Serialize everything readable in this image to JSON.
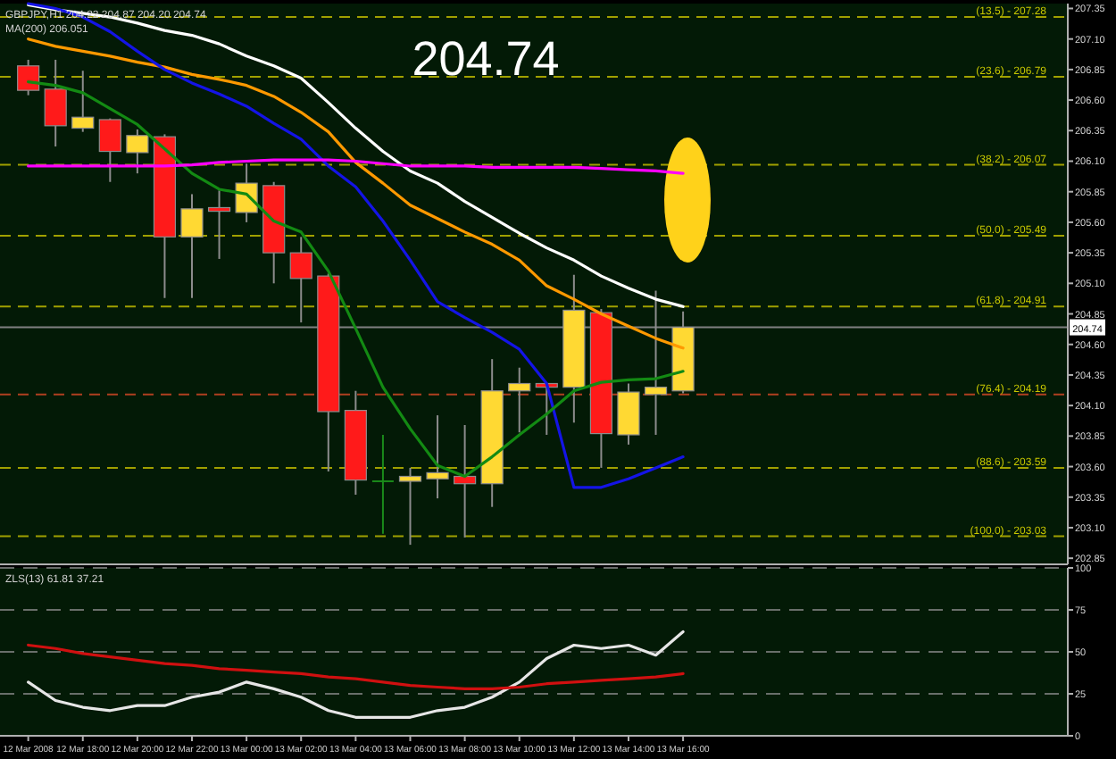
{
  "chart_data": [
    {
      "type": "candlestick",
      "annotations": [
        "GBPJPY,H1 204.22 204.87 204.20 204.74",
        "MA(200) 206.051",
        "204.74",
        {
          "text": "(13.5) - 207.28",
          "y": 207.28
        },
        {
          "text": "(23.6) - 206.79",
          "y": 206.79
        },
        {
          "text": "(38.2) - 206.07",
          "y": 206.07
        },
        {
          "text": "(50.0) - 205.49",
          "y": 205.49
        },
        {
          "text": "(61.8) - 204.91",
          "y": 204.91
        },
        {
          "text": "(76.4) - 204.19",
          "y": 204.19
        },
        {
          "text": "(88.6) - 203.59",
          "y": 203.59
        },
        {
          "text": "(100.0) - 203.03",
          "y": 203.03
        }
      ],
      "categories": [
        null,
        null,
        null,
        null,
        null,
        null,
        null,
        null,
        null,
        null,
        null,
        null,
        null,
        null,
        null,
        null,
        null,
        null,
        null,
        null,
        null,
        null,
        null,
        null,
        null
      ],
      "ohlc": [
        [
          206.88,
          206.93,
          206.64,
          206.68
        ],
        [
          206.69,
          206.93,
          206.22,
          206.39
        ],
        [
          206.37,
          206.84,
          206.34,
          206.46
        ],
        [
          206.44,
          206.45,
          205.93,
          206.18
        ],
        [
          206.17,
          206.36,
          206.0,
          206.31
        ],
        [
          206.3,
          206.32,
          204.98,
          205.48
        ],
        [
          205.48,
          205.83,
          204.98,
          205.71
        ],
        [
          205.72,
          205.86,
          205.3,
          205.69
        ],
        [
          205.68,
          206.08,
          205.6,
          205.92
        ],
        [
          205.9,
          205.93,
          205.1,
          205.35
        ],
        [
          205.35,
          205.48,
          204.78,
          205.14
        ],
        [
          205.16,
          205.18,
          203.56,
          204.05
        ],
        [
          204.06,
          204.22,
          203.37,
          203.49
        ],
        [
          203.48,
          203.86,
          203.05,
          203.48
        ],
        [
          203.48,
          203.59,
          202.96,
          203.52
        ],
        [
          203.5,
          204.02,
          203.34,
          203.55
        ],
        [
          203.52,
          203.94,
          203.02,
          203.46
        ],
        [
          203.46,
          204.48,
          203.27,
          204.22
        ],
        [
          204.22,
          204.41,
          203.88,
          204.28
        ],
        [
          204.28,
          204.28,
          203.86,
          204.25
        ],
        [
          204.25,
          205.17,
          203.96,
          204.88
        ],
        [
          204.86,
          204.89,
          203.59,
          203.87
        ],
        [
          203.86,
          204.28,
          203.78,
          204.21
        ],
        [
          204.19,
          205.04,
          203.86,
          204.25
        ],
        [
          204.22,
          204.87,
          204.2,
          204.74
        ]
      ],
      "colors": [
        "#ff1a1a",
        "#ff1a1a",
        "#ffd933",
        "#ff1a1a",
        "#ffd933",
        "#ff1a1a",
        "#ffd933",
        "#ff1a1a",
        "#ffd933",
        "#ff1a1a",
        "#ff1a1a",
        "#ff1a1a",
        "#ff1a1a",
        "#1a8a1a",
        "#ffd933",
        "#ffd933",
        "#ff1a1a",
        "#ffd933",
        "#ffd933",
        "#ff1a1a",
        "#ffd933",
        "#ff1a1a",
        "#ffd933",
        "#ffd933",
        "#ffd933"
      ],
      "series": [
        {
          "type": "line",
          "color": "#ffffff",
          "values": [
            207.38,
            207.34,
            207.31,
            207.28,
            207.23,
            207.17,
            207.13,
            207.06,
            206.96,
            206.88,
            206.78,
            206.58,
            206.37,
            206.18,
            206.02,
            205.92,
            205.77,
            205.64,
            205.51,
            205.39,
            205.29,
            205.16,
            205.06,
            204.97,
            204.91
          ]
        },
        {
          "type": "line",
          "color": "#ff9900",
          "values": [
            207.1,
            207.04,
            207.0,
            206.96,
            206.91,
            206.87,
            206.81,
            206.77,
            206.72,
            206.63,
            206.5,
            206.34,
            206.09,
            205.92,
            205.74,
            205.63,
            205.52,
            205.42,
            205.29,
            205.08,
            204.97,
            204.85,
            204.75,
            204.65,
            204.57
          ]
        },
        {
          "type": "line",
          "color": "#1414e6",
          "values": [
            207.39,
            207.35,
            207.28,
            207.16,
            207.0,
            206.85,
            206.74,
            206.65,
            206.55,
            206.41,
            206.28,
            206.06,
            205.89,
            205.61,
            205.29,
            204.95,
            204.82,
            204.7,
            204.56,
            204.28,
            203.43,
            203.43,
            203.5,
            203.59,
            203.68
          ]
        },
        {
          "type": "line",
          "color": "#138a13",
          "values": [
            206.75,
            206.72,
            206.66,
            206.53,
            206.4,
            206.2,
            206.0,
            205.87,
            205.83,
            205.61,
            205.52,
            205.2,
            204.73,
            204.25,
            203.91,
            203.61,
            203.52,
            203.68,
            203.86,
            204.03,
            204.22,
            204.29,
            204.31,
            204.32,
            204.38
          ]
        },
        {
          "type": "line",
          "color": "#ff00ff",
          "values": [
            206.06,
            206.06,
            206.06,
            206.06,
            206.06,
            206.06,
            206.07,
            206.09,
            206.1,
            206.11,
            206.11,
            206.11,
            206.1,
            206.08,
            206.06,
            206.06,
            206.06,
            206.05,
            206.05,
            206.05,
            206.05,
            206.04,
            206.03,
            206.02,
            206.0
          ]
        }
      ],
      "ylim": [
        202.8,
        207.39
      ],
      "yticks": [
        207.35,
        {
          "value": 207.1,
          "label": "207.10"
        },
        206.85,
        {
          "value": 206.6,
          "label": "206.60"
        },
        206.35,
        {
          "value": 206.1,
          "label": "206.10"
        },
        205.85,
        {
          "value": 205.6,
          "label": "205.60"
        },
        205.35,
        {
          "value": 205.1,
          "label": "205.10"
        },
        204.85,
        {
          "value": 204.6,
          "label": "204.60"
        },
        204.35,
        {
          "value": 204.1,
          "label": "204.10"
        },
        203.85,
        {
          "value": 203.6,
          "label": "203.60"
        },
        203.35,
        {
          "value": 203.1,
          "label": "203.10"
        },
        202.85
      ],
      "ref_lines": [
        {
          "axis": "y",
          "value": 207.28,
          "color": "#a0a000",
          "line_style": "dashed"
        },
        {
          "axis": "y",
          "value": 206.79,
          "color": "#a0a000",
          "line_style": "dashed"
        },
        {
          "axis": "y",
          "value": 206.07,
          "color": "#a0a000",
          "line_style": "dashed"
        },
        {
          "axis": "y",
          "value": 205.49,
          "color": "#a0a000",
          "line_style": "dashed"
        },
        {
          "axis": "y",
          "value": 204.91,
          "color": "#a0a000",
          "line_style": "dashed"
        },
        {
          "axis": "y",
          "value": 204.19,
          "color": "#b04020",
          "line_style": "dashed"
        },
        {
          "axis": "y",
          "value": 203.59,
          "color": "#a0a000",
          "line_style": "dashed"
        },
        {
          "axis": "y",
          "value": 203.03,
          "color": "#a0a000",
          "line_style": "dashed"
        },
        {
          "axis": "y",
          "value": 204.74,
          "label": "204.74",
          "color": "#808080",
          "line_style": "solid"
        }
      ],
      "grid": false,
      "tick_labels": "y"
    },
    {
      "type": "line",
      "annotations": [
        "ZLS(13) 61.81 37.21"
      ],
      "categories": [
        "12 Mar 2008",
        null,
        "12 Mar 18:00",
        null,
        "12 Mar 20:00",
        null,
        "12 Mar 22:00",
        null,
        "13 Mar 00:00",
        null,
        "13 Mar 02:00",
        null,
        "13 Mar 04:00",
        null,
        "13 Mar 06:00",
        null,
        "13 Mar 08:00",
        null,
        "13 Mar 10:00",
        null,
        "13 Mar 12:00",
        null,
        "13 Mar 14:00",
        null,
        "13 Mar 16:00"
      ],
      "series": [
        {
          "color": "#e6e6e6",
          "values": [
            32,
            21,
            17,
            15,
            18,
            18,
            23,
            26,
            32,
            28,
            23,
            15,
            11,
            11,
            11,
            15,
            17,
            23,
            32,
            46,
            54,
            52,
            54,
            48,
            62
          ]
        },
        {
          "color": "#d01010",
          "values": [
            54,
            52,
            49,
            47,
            45,
            43,
            42,
            40,
            39,
            38,
            37,
            35,
            34,
            32,
            30,
            29,
            28,
            28,
            29,
            31,
            32,
            33,
            34,
            35,
            37
          ]
        }
      ],
      "ylim": [
        0,
        100
      ],
      "yticks": [
        0,
        25,
        50,
        75,
        100
      ],
      "grid": "y"
    }
  ]
}
